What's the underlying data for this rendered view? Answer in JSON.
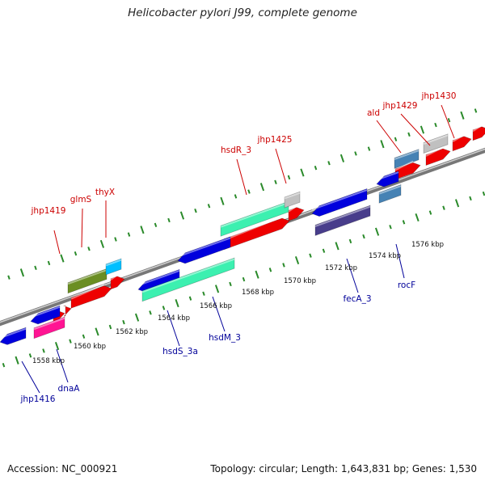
{
  "title": "Helicobacter pylori J99, complete genome",
  "footer": {
    "accession": "Accession: NC_000921",
    "summary": "Topology: circular; Length: 1,643,831 bp; Genes: 1,530"
  },
  "colors": {
    "background": "#ffffff",
    "backbone": "#9a9a9a",
    "ticks": "#2a8a2a",
    "forward_label": "#cc0000",
    "reverse_label": "#000099"
  },
  "scale_labels": [
    "1558 kbp",
    "1560 kbp",
    "1562 kbp",
    "1564 kbp",
    "1566 kbp",
    "1568 kbp",
    "1570 kbp",
    "1572 kbp",
    "1574 kbp",
    "1576 kbp"
  ],
  "forward_gene_labels": [
    "jhp1419",
    "glmS",
    "thyX",
    "hsdR_3",
    "jhp1425",
    "ald",
    "jhp1429",
    "jhp1430"
  ],
  "reverse_gene_labels": [
    "jhp1416",
    "dnaA",
    "hsdS_3a",
    "hsdM_3",
    "fecA_3",
    "rocF"
  ]
}
